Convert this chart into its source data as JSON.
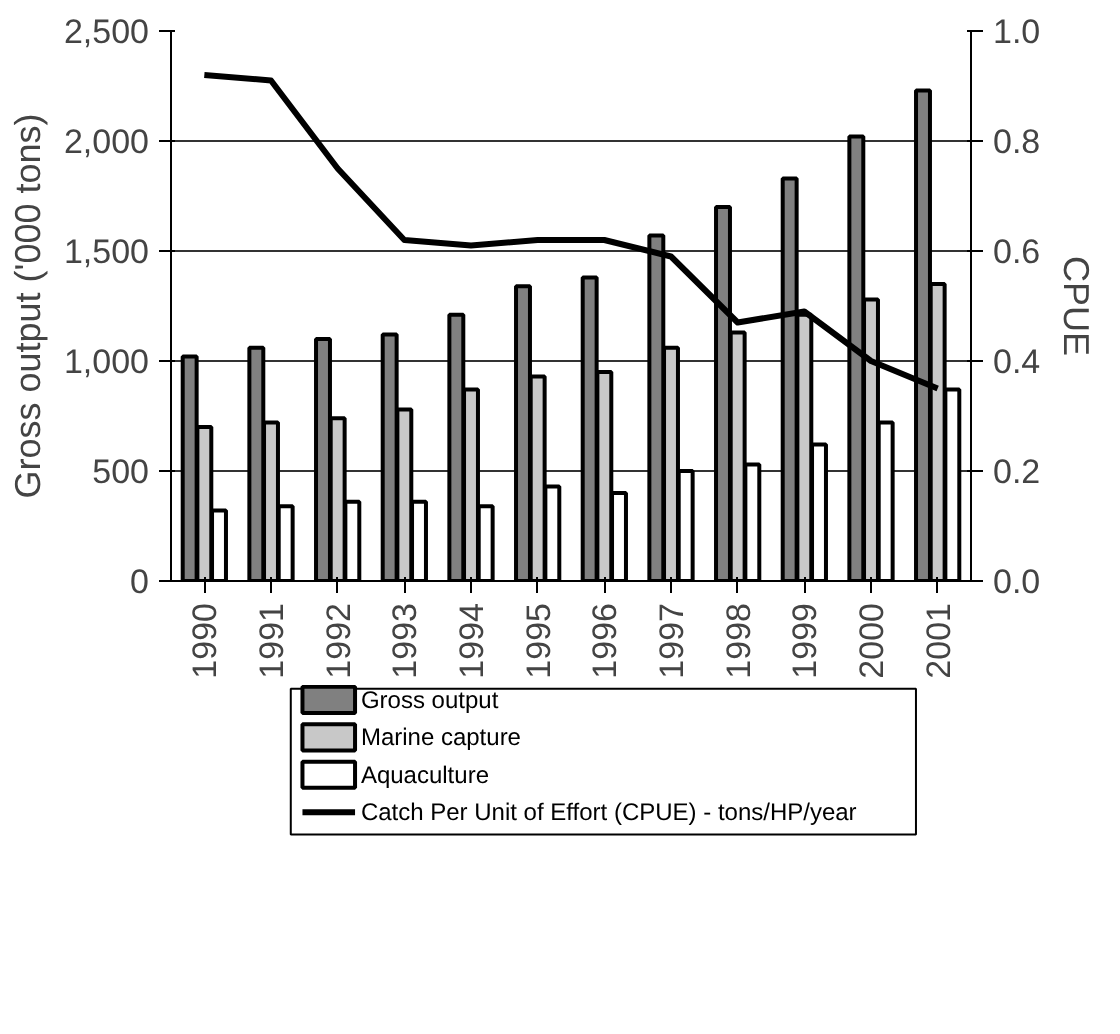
{
  "chart_data": {
    "type": "bar",
    "categories": [
      "1990",
      "1991",
      "1992",
      "1993",
      "1994",
      "1995",
      "1996",
      "1997",
      "1998",
      "1999",
      "2000",
      "2001"
    ],
    "ylabel": "Gross output ('000 tons)",
    "y2label": "CPUE",
    "ylim": [
      0,
      2500
    ],
    "yticks": [
      {
        "value": 0,
        "label": "0"
      },
      {
        "value": 500,
        "label": "500"
      },
      {
        "value": 1000,
        "label": "1,000"
      },
      {
        "value": 1500,
        "label": "1,500"
      },
      {
        "value": 2000,
        "label": "2,000"
      },
      {
        "value": 2500,
        "label": "2,500"
      }
    ],
    "y2lim": [
      0,
      1.0
    ],
    "y2ticks": [
      {
        "value": 0,
        "label": "0.0"
      },
      {
        "value": 0.2,
        "label": "0.2"
      },
      {
        "value": 0.4,
        "label": "0.4"
      },
      {
        "value": 0.6,
        "label": "0.6"
      },
      {
        "value": 0.8,
        "label": "0.8"
      },
      {
        "value": 1.0,
        "label": "1.0"
      }
    ],
    "grid": "y",
    "legend": "bottom",
    "series": [
      {
        "name": "Gross output",
        "color": "#808080",
        "values": [
          1020,
          1060,
          1100,
          1120,
          1210,
          1340,
          1380,
          1570,
          1700,
          1830,
          2020,
          2230
        ]
      },
      {
        "name": "Marine capture",
        "color": "#c8c8c8",
        "values": [
          700,
          720,
          740,
          780,
          870,
          930,
          950,
          1060,
          1130,
          1210,
          1280,
          1350
        ]
      },
      {
        "name": "Aquaculture",
        "color": "#ffffff",
        "values": [
          320,
          340,
          360,
          360,
          340,
          430,
          400,
          500,
          530,
          620,
          720,
          870
        ]
      },
      {
        "name": "Catch Per Unit of Effort (CPUE) - tons/HP/year",
        "color": "#000000",
        "type": "line",
        "axis": "y2",
        "values": [
          0.92,
          0.91,
          0.75,
          0.62,
          0.61,
          0.62,
          0.62,
          0.59,
          0.47,
          0.49,
          0.4,
          0.35
        ]
      }
    ]
  }
}
